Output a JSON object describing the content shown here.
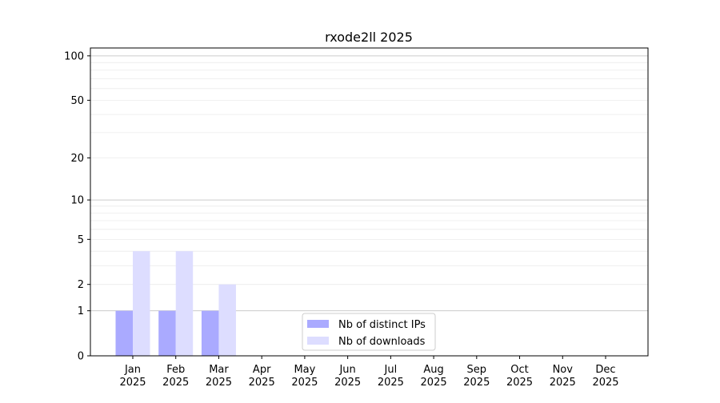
{
  "chart_data": {
    "type": "bar",
    "title": "rxode2ll 2025",
    "xlabel": "",
    "ylabel": "",
    "yscale": "log(1+y)",
    "ylim": [
      0,
      113
    ],
    "yticks": [
      0,
      1,
      2,
      5,
      10,
      20,
      50,
      100
    ],
    "grid": true,
    "legend_placement": "lower-center",
    "categories": [
      "Jan\n2025",
      "Feb\n2025",
      "Mar\n2025",
      "Apr\n2025",
      "May\n2025",
      "Jun\n2025",
      "Jul\n2025",
      "Aug\n2025",
      "Sep\n2025",
      "Oct\n2025",
      "Nov\n2025",
      "Dec\n2025"
    ],
    "series": [
      {
        "name": "Nb of distinct IPs",
        "color": "#aaaaff",
        "values": [
          1,
          1,
          1,
          0,
          0,
          0,
          0,
          0,
          0,
          0,
          0,
          0
        ]
      },
      {
        "name": "Nb of downloads",
        "color": "#ddddff",
        "values": [
          4,
          4,
          2,
          0,
          0,
          0,
          0,
          0,
          0,
          0,
          0,
          0
        ]
      }
    ]
  }
}
